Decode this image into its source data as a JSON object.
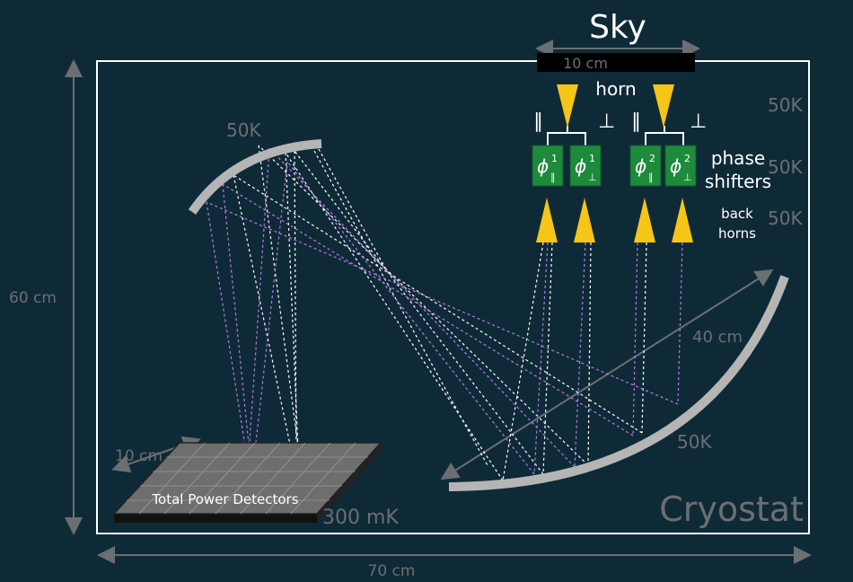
{
  "title": "Sky",
  "labels": {
    "aperture_width": "10 cm",
    "horn": "horn",
    "phase_shifters_line1": "phase",
    "phase_shifters_line2": "shifters",
    "back_horns_line1": "back",
    "back_horns_line2": "horns",
    "stage_top": "50K",
    "stage_mid": "50K",
    "stage_low": "50K",
    "small_mirror_temp": "50K",
    "large_mirror_temp": "50K",
    "large_mirror_size": "40 cm",
    "height": "60 cm",
    "width": "70 cm",
    "detector_size": "10 cm",
    "detector_temp": "300 mK",
    "cryostat": "Cryostat",
    "detectors": "Total Power Detectors",
    "parallel_symbol": "∥",
    "perp_symbol": "⊥"
  },
  "phase_shifters": [
    {
      "symbol": "ϕ",
      "sup": "1",
      "sub": "∥"
    },
    {
      "symbol": "ϕ",
      "sup": "1",
      "sub": "⊥"
    },
    {
      "symbol": "ϕ",
      "sup": "2",
      "sub": "∥"
    },
    {
      "symbol": "ϕ",
      "sup": "2",
      "sub": "⊥"
    }
  ],
  "colors": {
    "background": "#0f2a37",
    "frame": "#ffffff",
    "dim_text": "#6b6f72",
    "mirror": "#b5b5b5",
    "horn": "#f5c518",
    "shifter": "#1e8a3c",
    "ray_white": "#ffffff",
    "ray_purple": "#b57be8"
  }
}
